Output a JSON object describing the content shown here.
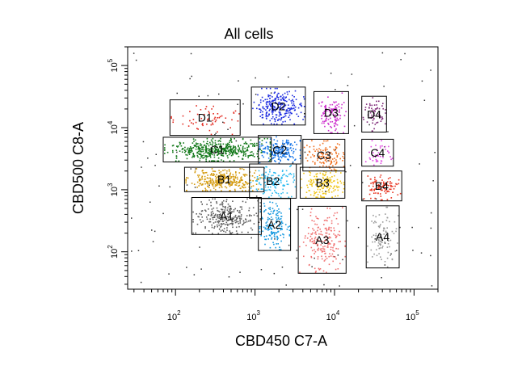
{
  "chart_data": {
    "type": "scatter",
    "title": "All cells",
    "xlabel": "CBD450 C7-A",
    "ylabel": "CBD500 C8-A",
    "x_scale": "log",
    "y_scale": "log",
    "xlim": [
      25,
      200000
    ],
    "ylim": [
      25,
      200000
    ],
    "x_ticks": [
      {
        "base": "10",
        "exp": "2",
        "value": 100
      },
      {
        "base": "10",
        "exp": "3",
        "value": 1000
      },
      {
        "base": "10",
        "exp": "4",
        "value": 10000
      },
      {
        "base": "10",
        "exp": "5",
        "value": 100000
      }
    ],
    "y_ticks": [
      {
        "base": "10",
        "exp": "2",
        "value": 100
      },
      {
        "base": "10",
        "exp": "3",
        "value": 1000
      },
      {
        "base": "10",
        "exp": "4",
        "value": 10000
      },
      {
        "base": "10",
        "exp": "5",
        "value": 100000
      }
    ],
    "grid": false,
    "legend": "none",
    "gates": [
      {
        "name": "D1",
        "x": [
          85,
          650
        ],
        "y": [
          7500,
          28000
        ],
        "color": "#e32a20",
        "n": 60
      },
      {
        "name": "D2",
        "x": [
          900,
          4300
        ],
        "y": [
          11000,
          45000
        ],
        "color": "#1f2de0",
        "n": 260
      },
      {
        "name": "D3",
        "x": [
          5500,
          15000
        ],
        "y": [
          8000,
          38000
        ],
        "color": "#cc2ccc",
        "n": 110
      },
      {
        "name": "D4",
        "x": [
          22000,
          45000
        ],
        "y": [
          8500,
          32000
        ],
        "color": "#7e2877",
        "n": 60
      },
      {
        "name": "C1",
        "x": [
          70,
          1600
        ],
        "y": [
          2800,
          7000
        ],
        "color": "#157a1c",
        "n": 460
      },
      {
        "name": "C2",
        "x": [
          1100,
          3800
        ],
        "y": [
          2600,
          7500
        ],
        "color": "#1a77e8",
        "n": 190
      },
      {
        "name": "C3",
        "x": [
          4000,
          13500
        ],
        "y": [
          2000,
          6500
        ],
        "color": "#f07020",
        "n": 110
      },
      {
        "name": "C4",
        "x": [
          22000,
          55000
        ],
        "y": [
          2400,
          6500
        ],
        "color": "#e04ae0",
        "n": 40
      },
      {
        "name": "B1",
        "x": [
          130,
          1300
        ],
        "y": [
          930,
          2300
        ],
        "color": "#d49b10",
        "n": 320
      },
      {
        "name": "B2",
        "x": [
          850,
          3300
        ],
        "y": [
          730,
          2600
        ],
        "color": "#2fbcf0",
        "n": 130
      },
      {
        "name": "B3",
        "x": [
          3700,
          13500
        ],
        "y": [
          730,
          2300
        ],
        "color": "#f0c414",
        "n": 160
      },
      {
        "name": "B4",
        "x": [
          22000,
          70000
        ],
        "y": [
          660,
          2000
        ],
        "color": "#e83420",
        "n": 95
      },
      {
        "name": "A1",
        "x": [
          160,
          1200
        ],
        "y": [
          190,
          750
        ],
        "color": "#606060",
        "n": 260
      },
      {
        "name": "A2",
        "x": [
          1100,
          2800
        ],
        "y": [
          105,
          720
        ],
        "color": "#1a9be0",
        "n": 150
      },
      {
        "name": "A3",
        "x": [
          3500,
          14000
        ],
        "y": [
          45,
          540
        ],
        "color": "#f07070",
        "n": 190
      },
      {
        "name": "A4",
        "x": [
          25000,
          65000
        ],
        "y": [
          55,
          550
        ],
        "color": "#9a9a9a",
        "n": 90
      }
    ]
  }
}
